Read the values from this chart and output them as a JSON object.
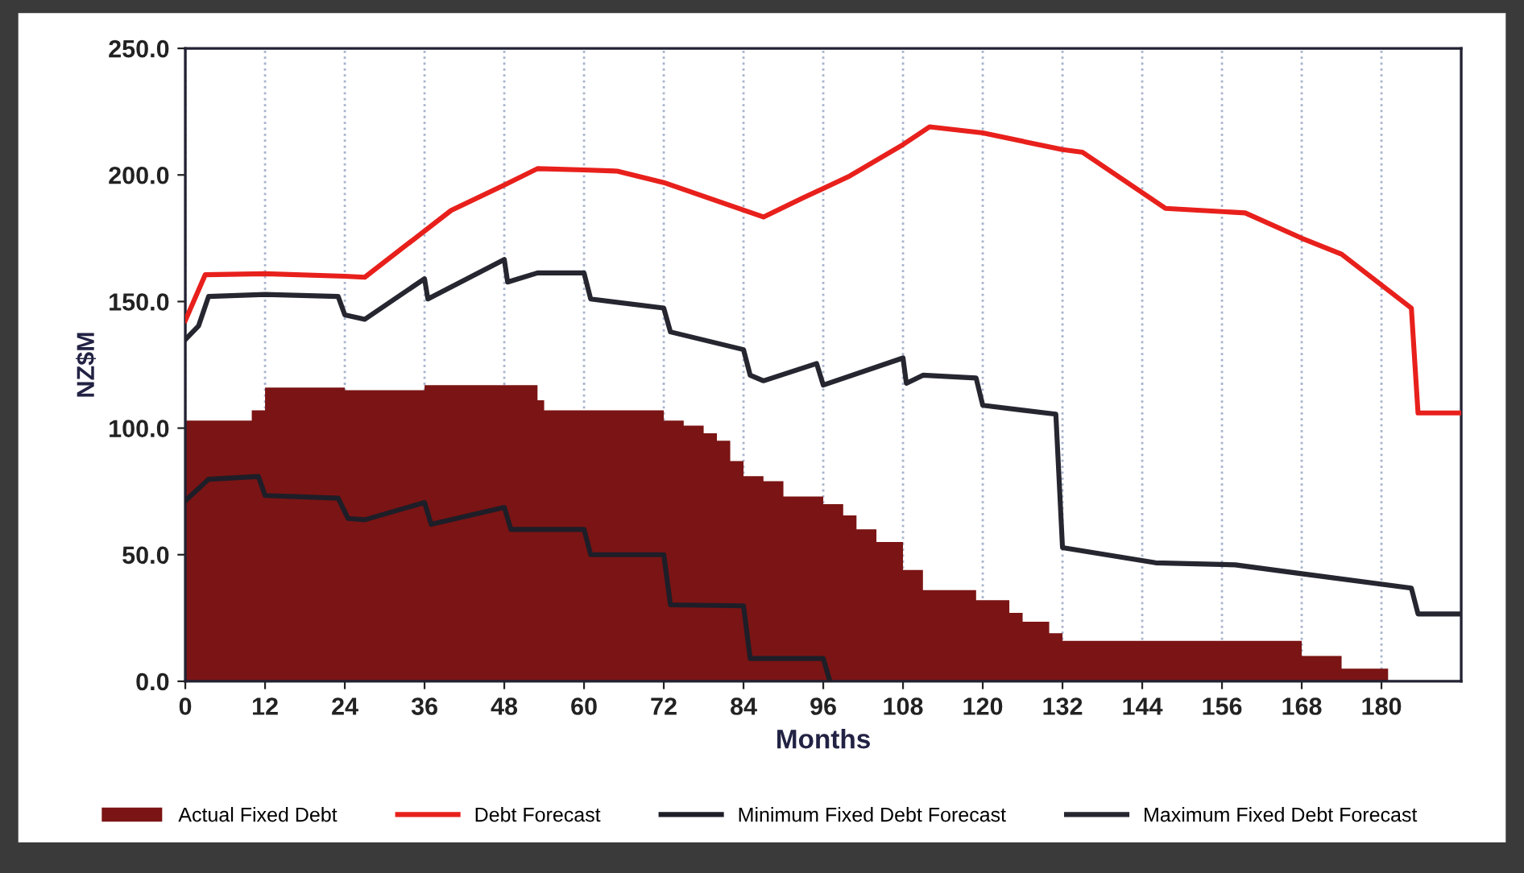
{
  "chart_data": {
    "type": "line",
    "xlabel": "Months",
    "ylabel": "NZ$M",
    "xlim": [
      0,
      192
    ],
    "xticks": [
      0,
      12,
      24,
      36,
      48,
      60,
      72,
      84,
      96,
      108,
      120,
      132,
      144,
      156,
      168,
      180
    ],
    "ylim": [
      0,
      250
    ],
    "yticks": [
      {
        "value": 0,
        "label": "0.0"
      },
      {
        "value": 50,
        "label": "50.0"
      },
      {
        "value": 100,
        "label": "100.0"
      },
      {
        "value": 150,
        "label": "150.0"
      },
      {
        "value": 200,
        "label": "200.0"
      },
      {
        "value": 250,
        "label": "250.0"
      }
    ],
    "grid": "x",
    "legend": "bottom",
    "series": [
      {
        "name": "Actual Fixed Debt",
        "type": "area",
        "color": "#7b1414",
        "x": [
          0,
          10,
          10,
          12,
          12,
          24,
          24,
          36,
          36,
          53,
          53,
          54,
          54,
          72,
          72,
          75,
          75,
          78,
          78,
          80,
          80,
          82,
          82,
          84,
          84,
          87,
          87,
          90,
          90,
          96,
          96,
          99,
          99,
          101,
          101,
          104,
          104,
          108,
          108,
          111,
          111,
          119,
          119,
          124,
          124,
          126,
          126,
          130,
          130,
          132,
          132,
          168,
          168,
          174,
          174,
          181,
          181
        ],
        "values": [
          103,
          103,
          107,
          107,
          116,
          116,
          115,
          115,
          117,
          117,
          111,
          111,
          107,
          107,
          103,
          103,
          101,
          101,
          98,
          98,
          95,
          95,
          87,
          87,
          81,
          81,
          79,
          79,
          73,
          73,
          70,
          70,
          65.5,
          65.5,
          60,
          60,
          55,
          55,
          44,
          44,
          36,
          36,
          32,
          32,
          27,
          27,
          23.5,
          23.5,
          19,
          19,
          16,
          16,
          10,
          10,
          5,
          5,
          0
        ]
      },
      {
        "name": "Debt Forecast",
        "color": "#e8201c",
        "x": [
          0,
          3,
          12,
          24,
          27,
          40,
          48,
          53,
          60,
          65,
          72,
          87,
          93,
          100,
          108,
          112,
          120,
          132,
          135,
          147.5,
          159.5,
          168,
          174,
          184.5,
          185.5,
          192
        ],
        "values": [
          142.5,
          160.6,
          161,
          160,
          159.6,
          186,
          196,
          202.5,
          202,
          201.5,
          197,
          183.4,
          191,
          199.6,
          212,
          219,
          216.6,
          210,
          209,
          186.8,
          185,
          175,
          168.7,
          147.4,
          106,
          106
        ]
      },
      {
        "name": "Minimum Fixed Debt Forecast",
        "color": "#1e1e28",
        "x": [
          0,
          3.5,
          11,
          12,
          23,
          24.5,
          27,
          36,
          37,
          48,
          49,
          60,
          61,
          72,
          73,
          84,
          85,
          96,
          97
        ],
        "values": [
          71.3,
          79.8,
          80.9,
          73.4,
          72.3,
          64.3,
          63.8,
          70.6,
          62,
          68.7,
          60,
          60,
          50,
          50,
          30.2,
          29.8,
          9,
          9,
          0
        ]
      },
      {
        "name": "Maximum Fixed Debt Forecast",
        "color": "#262630",
        "x": [
          0,
          2,
          3.5,
          12,
          23,
          24,
          27,
          36,
          36.5,
          48,
          48.5,
          53,
          60,
          61,
          72,
          73,
          84,
          85,
          87,
          95,
          96,
          108,
          108.5,
          111,
          119,
          120,
          131,
          132,
          146,
          158,
          168,
          184.5,
          185.5,
          192
        ],
        "values": [
          135,
          140.4,
          152,
          152.8,
          152,
          144.7,
          143,
          159,
          151,
          166.6,
          157.7,
          161.3,
          161.3,
          151,
          147.4,
          138,
          131,
          120.9,
          118.7,
          125.5,
          117,
          127.7,
          117.7,
          120.9,
          119.8,
          109,
          105.5,
          52.8,
          46.8,
          46,
          42.5,
          36.8,
          26.6,
          26.6
        ]
      }
    ]
  }
}
